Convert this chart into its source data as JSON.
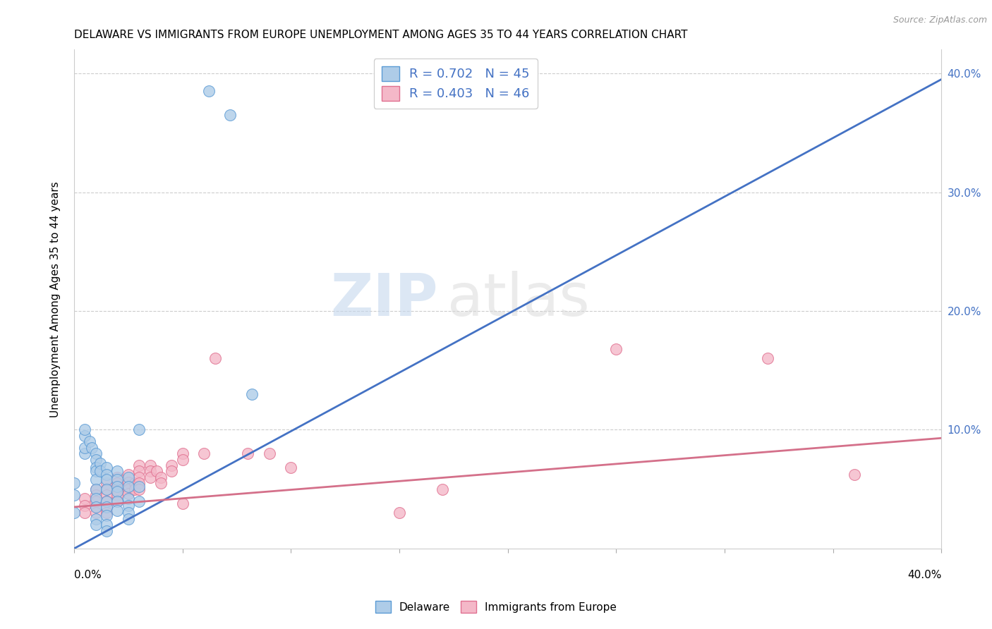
{
  "title": "DELAWARE VS IMMIGRANTS FROM EUROPE UNEMPLOYMENT AMONG AGES 35 TO 44 YEARS CORRELATION CHART",
  "source": "Source: ZipAtlas.com",
  "ylabel": "Unemployment Among Ages 35 to 44 years",
  "xlim": [
    0.0,
    0.4
  ],
  "ylim": [
    0.0,
    0.42
  ],
  "yticks": [
    0.0,
    0.1,
    0.2,
    0.3,
    0.4
  ],
  "ytick_labels": [
    "",
    "10.0%",
    "20.0%",
    "30.0%",
    "40.0%"
  ],
  "xticks": [
    0.0,
    0.05,
    0.1,
    0.15,
    0.2,
    0.25,
    0.3,
    0.35,
    0.4
  ],
  "delaware_color": "#aecce8",
  "delaware_edge": "#5b9bd5",
  "immigrants_color": "#f4b8c8",
  "immigrants_edge": "#e07090",
  "trendline_delaware": "#4472c4",
  "trendline_immigrants": "#d4708a",
  "del_trend_x0": 0.0,
  "del_trend_y0": 0.0,
  "del_trend_x1": 0.4,
  "del_trend_y1": 0.395,
  "imm_trend_x0": 0.0,
  "imm_trend_y0": 0.035,
  "imm_trend_x1": 0.4,
  "imm_trend_y1": 0.093,
  "delaware_points": [
    [
      0.0,
      0.045
    ],
    [
      0.0,
      0.055
    ],
    [
      0.0,
      0.03
    ],
    [
      0.005,
      0.08
    ],
    [
      0.005,
      0.085
    ],
    [
      0.005,
      0.095
    ],
    [
      0.005,
      0.1
    ],
    [
      0.007,
      0.09
    ],
    [
      0.008,
      0.085
    ],
    [
      0.01,
      0.08
    ],
    [
      0.01,
      0.075
    ],
    [
      0.01,
      0.068
    ],
    [
      0.01,
      0.065
    ],
    [
      0.01,
      0.058
    ],
    [
      0.01,
      0.05
    ],
    [
      0.01,
      0.042
    ],
    [
      0.01,
      0.035
    ],
    [
      0.01,
      0.025
    ],
    [
      0.01,
      0.02
    ],
    [
      0.012,
      0.072
    ],
    [
      0.012,
      0.065
    ],
    [
      0.015,
      0.068
    ],
    [
      0.015,
      0.062
    ],
    [
      0.015,
      0.058
    ],
    [
      0.015,
      0.05
    ],
    [
      0.015,
      0.04
    ],
    [
      0.015,
      0.035
    ],
    [
      0.015,
      0.028
    ],
    [
      0.015,
      0.02
    ],
    [
      0.015,
      0.015
    ],
    [
      0.02,
      0.065
    ],
    [
      0.02,
      0.058
    ],
    [
      0.02,
      0.052
    ],
    [
      0.02,
      0.048
    ],
    [
      0.02,
      0.04
    ],
    [
      0.02,
      0.032
    ],
    [
      0.025,
      0.06
    ],
    [
      0.025,
      0.052
    ],
    [
      0.025,
      0.042
    ],
    [
      0.025,
      0.036
    ],
    [
      0.025,
      0.03
    ],
    [
      0.025,
      0.025
    ],
    [
      0.03,
      0.1
    ],
    [
      0.03,
      0.052
    ],
    [
      0.03,
      0.04
    ],
    [
      0.062,
      0.385
    ],
    [
      0.072,
      0.365
    ],
    [
      0.082,
      0.13
    ]
  ],
  "immigrants_points": [
    [
      0.005,
      0.042
    ],
    [
      0.005,
      0.036
    ],
    [
      0.005,
      0.03
    ],
    [
      0.01,
      0.05
    ],
    [
      0.01,
      0.045
    ],
    [
      0.01,
      0.04
    ],
    [
      0.01,
      0.035
    ],
    [
      0.01,
      0.03
    ],
    [
      0.015,
      0.055
    ],
    [
      0.015,
      0.05
    ],
    [
      0.015,
      0.045
    ],
    [
      0.015,
      0.04
    ],
    [
      0.015,
      0.035
    ],
    [
      0.015,
      0.03
    ],
    [
      0.02,
      0.06
    ],
    [
      0.02,
      0.055
    ],
    [
      0.02,
      0.05
    ],
    [
      0.02,
      0.045
    ],
    [
      0.02,
      0.04
    ],
    [
      0.025,
      0.062
    ],
    [
      0.025,
      0.056
    ],
    [
      0.025,
      0.05
    ],
    [
      0.025,
      0.046
    ],
    [
      0.028,
      0.055
    ],
    [
      0.028,
      0.05
    ],
    [
      0.03,
      0.07
    ],
    [
      0.03,
      0.065
    ],
    [
      0.03,
      0.06
    ],
    [
      0.03,
      0.055
    ],
    [
      0.03,
      0.05
    ],
    [
      0.035,
      0.07
    ],
    [
      0.035,
      0.065
    ],
    [
      0.035,
      0.06
    ],
    [
      0.038,
      0.065
    ],
    [
      0.04,
      0.06
    ],
    [
      0.04,
      0.055
    ],
    [
      0.045,
      0.07
    ],
    [
      0.045,
      0.065
    ],
    [
      0.05,
      0.08
    ],
    [
      0.05,
      0.075
    ],
    [
      0.05,
      0.038
    ],
    [
      0.06,
      0.08
    ],
    [
      0.065,
      0.16
    ],
    [
      0.08,
      0.08
    ],
    [
      0.09,
      0.08
    ],
    [
      0.1,
      0.068
    ],
    [
      0.15,
      0.03
    ],
    [
      0.17,
      0.05
    ],
    [
      0.25,
      0.168
    ],
    [
      0.32,
      0.16
    ],
    [
      0.36,
      0.062
    ]
  ]
}
